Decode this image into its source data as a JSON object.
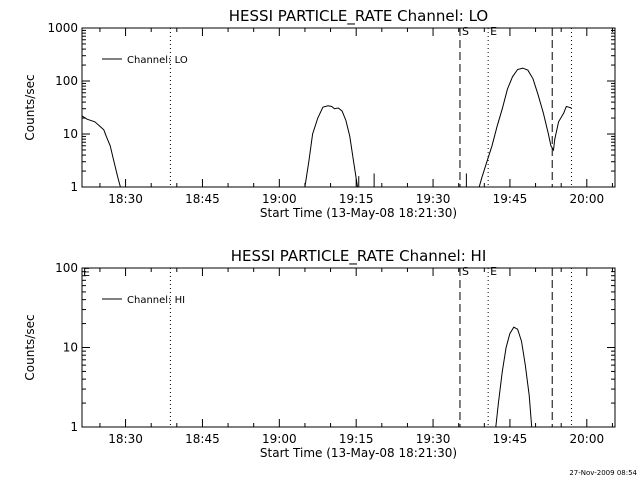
{
  "footer": {
    "timestamp": "27-Nov-2009 08:54"
  },
  "chart_data": [
    {
      "type": "line",
      "title": "HESSI PARTICLE_RATE Channel: LO",
      "xlabel": "Start Time (13-May-08 18:21:30)",
      "ylabel": "Counts/sec",
      "y_scale": "log",
      "xlim": [
        "18:21:30",
        "20:05:30"
      ],
      "ylim": [
        1,
        1000
      ],
      "x_ticks": [
        "18:30",
        "18:45",
        "19:00",
        "19:15",
        "19:30",
        "19:45",
        "20:00"
      ],
      "y_ticks": [
        "1",
        "10",
        "100",
        "1000"
      ],
      "legend": {
        "placement": "top-left",
        "entries": [
          "Channel: LO"
        ]
      },
      "grid": false,
      "markers": [
        {
          "label": "S",
          "time": "19:35:15",
          "style": "dashed"
        },
        {
          "label": "E",
          "time": "19:40:45",
          "style": "dotted"
        }
      ],
      "extra_lines": [
        {
          "time": "18:38:45",
          "style": "dotted"
        },
        {
          "time": "19:53:15",
          "style": "dashed"
        },
        {
          "time": "19:57:00",
          "style": "dotted"
        }
      ],
      "series": [
        {
          "segments": [
            [
              [
                "18:21:30",
                22
              ],
              [
                "18:22:30",
                19
              ],
              [
                "18:24:00",
                17
              ],
              [
                "18:25:00",
                14
              ],
              [
                "18:25:45",
                12
              ],
              [
                "18:26:15",
                9
              ],
              [
                "18:27:00",
                6
              ],
              [
                "18:27:45",
                3
              ],
              [
                "18:28:30",
                1.5
              ],
              [
                "18:29:00",
                1
              ]
            ],
            [
              [
                "19:05:00",
                1
              ],
              [
                "19:05:45",
                3
              ],
              [
                "19:06:30",
                10
              ],
              [
                "19:07:30",
                20
              ],
              [
                "19:08:30",
                32
              ],
              [
                "19:09:30",
                34
              ],
              [
                "19:10:15",
                33
              ],
              [
                "19:10:45",
                30
              ],
              [
                "19:11:30",
                31
              ],
              [
                "19:12:15",
                27
              ],
              [
                "19:13:00",
                18
              ],
              [
                "19:13:45",
                9
              ],
              [
                "19:14:30",
                3
              ],
              [
                "19:15:15",
                1
              ]
            ],
            [
              [
                "19:39:00",
                1
              ],
              [
                "19:39:30",
                1.5
              ],
              [
                "19:40:30",
                3
              ],
              [
                "19:41:30",
                6
              ],
              [
                "19:42:30",
                14
              ],
              [
                "19:43:30",
                30
              ],
              [
                "19:44:30",
                70
              ],
              [
                "19:45:30",
                120
              ],
              [
                "19:46:30",
                165
              ],
              [
                "19:47:30",
                175
              ],
              [
                "19:48:30",
                160
              ],
              [
                "19:49:30",
                110
              ],
              [
                "19:50:30",
                55
              ],
              [
                "19:51:30",
                25
              ],
              [
                "19:52:30",
                10
              ],
              [
                "19:53:00",
                6
              ],
              [
                "19:53:30",
                5
              ],
              [
                "19:53:45",
                8
              ],
              [
                "19:54:30",
                17
              ],
              [
                "19:55:30",
                25
              ],
              [
                "19:56:00",
                33
              ],
              [
                "19:56:30",
                32
              ],
              [
                "19:57:00",
                31
              ]
            ]
          ],
          "spikes": [
            {
              "time": "19:15:30",
              "value": 1.6
            },
            {
              "time": "19:18:30",
              "value": 1.8
            },
            {
              "time": "19:36:30",
              "value": 1.8
            }
          ]
        }
      ]
    },
    {
      "type": "line",
      "title": "HESSI PARTICLE_RATE Channel: HI",
      "xlabel": "Start Time (13-May-08 18:21:30)",
      "ylabel": "Counts/sec",
      "y_scale": "log",
      "xlim": [
        "18:21:30",
        "20:05:30"
      ],
      "ylim": [
        1,
        100
      ],
      "x_ticks": [
        "18:30",
        "18:45",
        "19:00",
        "19:15",
        "19:30",
        "19:45",
        "20:00"
      ],
      "y_ticks": [
        "1",
        "10",
        "100"
      ],
      "legend": {
        "placement": "top-left",
        "entries": [
          "Channel: HI"
        ]
      },
      "grid": false,
      "markers": [
        {
          "label": "S",
          "time": "19:35:15",
          "style": "dashed"
        },
        {
          "label": "E",
          "time": "19:40:45",
          "style": "dotted"
        }
      ],
      "edge_labels": [
        {
          "label": "E",
          "time": "18:21:30"
        }
      ],
      "extra_lines": [
        {
          "time": "18:38:45",
          "style": "dotted"
        },
        {
          "time": "19:53:15",
          "style": "dashed"
        },
        {
          "time": "19:57:00",
          "style": "dotted"
        }
      ],
      "series": [
        {
          "segments": [
            [
              [
                "19:42:15",
                1
              ],
              [
                "19:42:45",
                2
              ],
              [
                "19:43:30",
                5
              ],
              [
                "19:44:15",
                10
              ],
              [
                "19:45:00",
                15
              ],
              [
                "19:45:45",
                18
              ],
              [
                "19:46:30",
                17
              ],
              [
                "19:47:15",
                12
              ],
              [
                "19:48:00",
                6
              ],
              [
                "19:48:45",
                2.5
              ],
              [
                "19:49:15",
                1
              ]
            ]
          ],
          "spikes": []
        }
      ]
    }
  ]
}
